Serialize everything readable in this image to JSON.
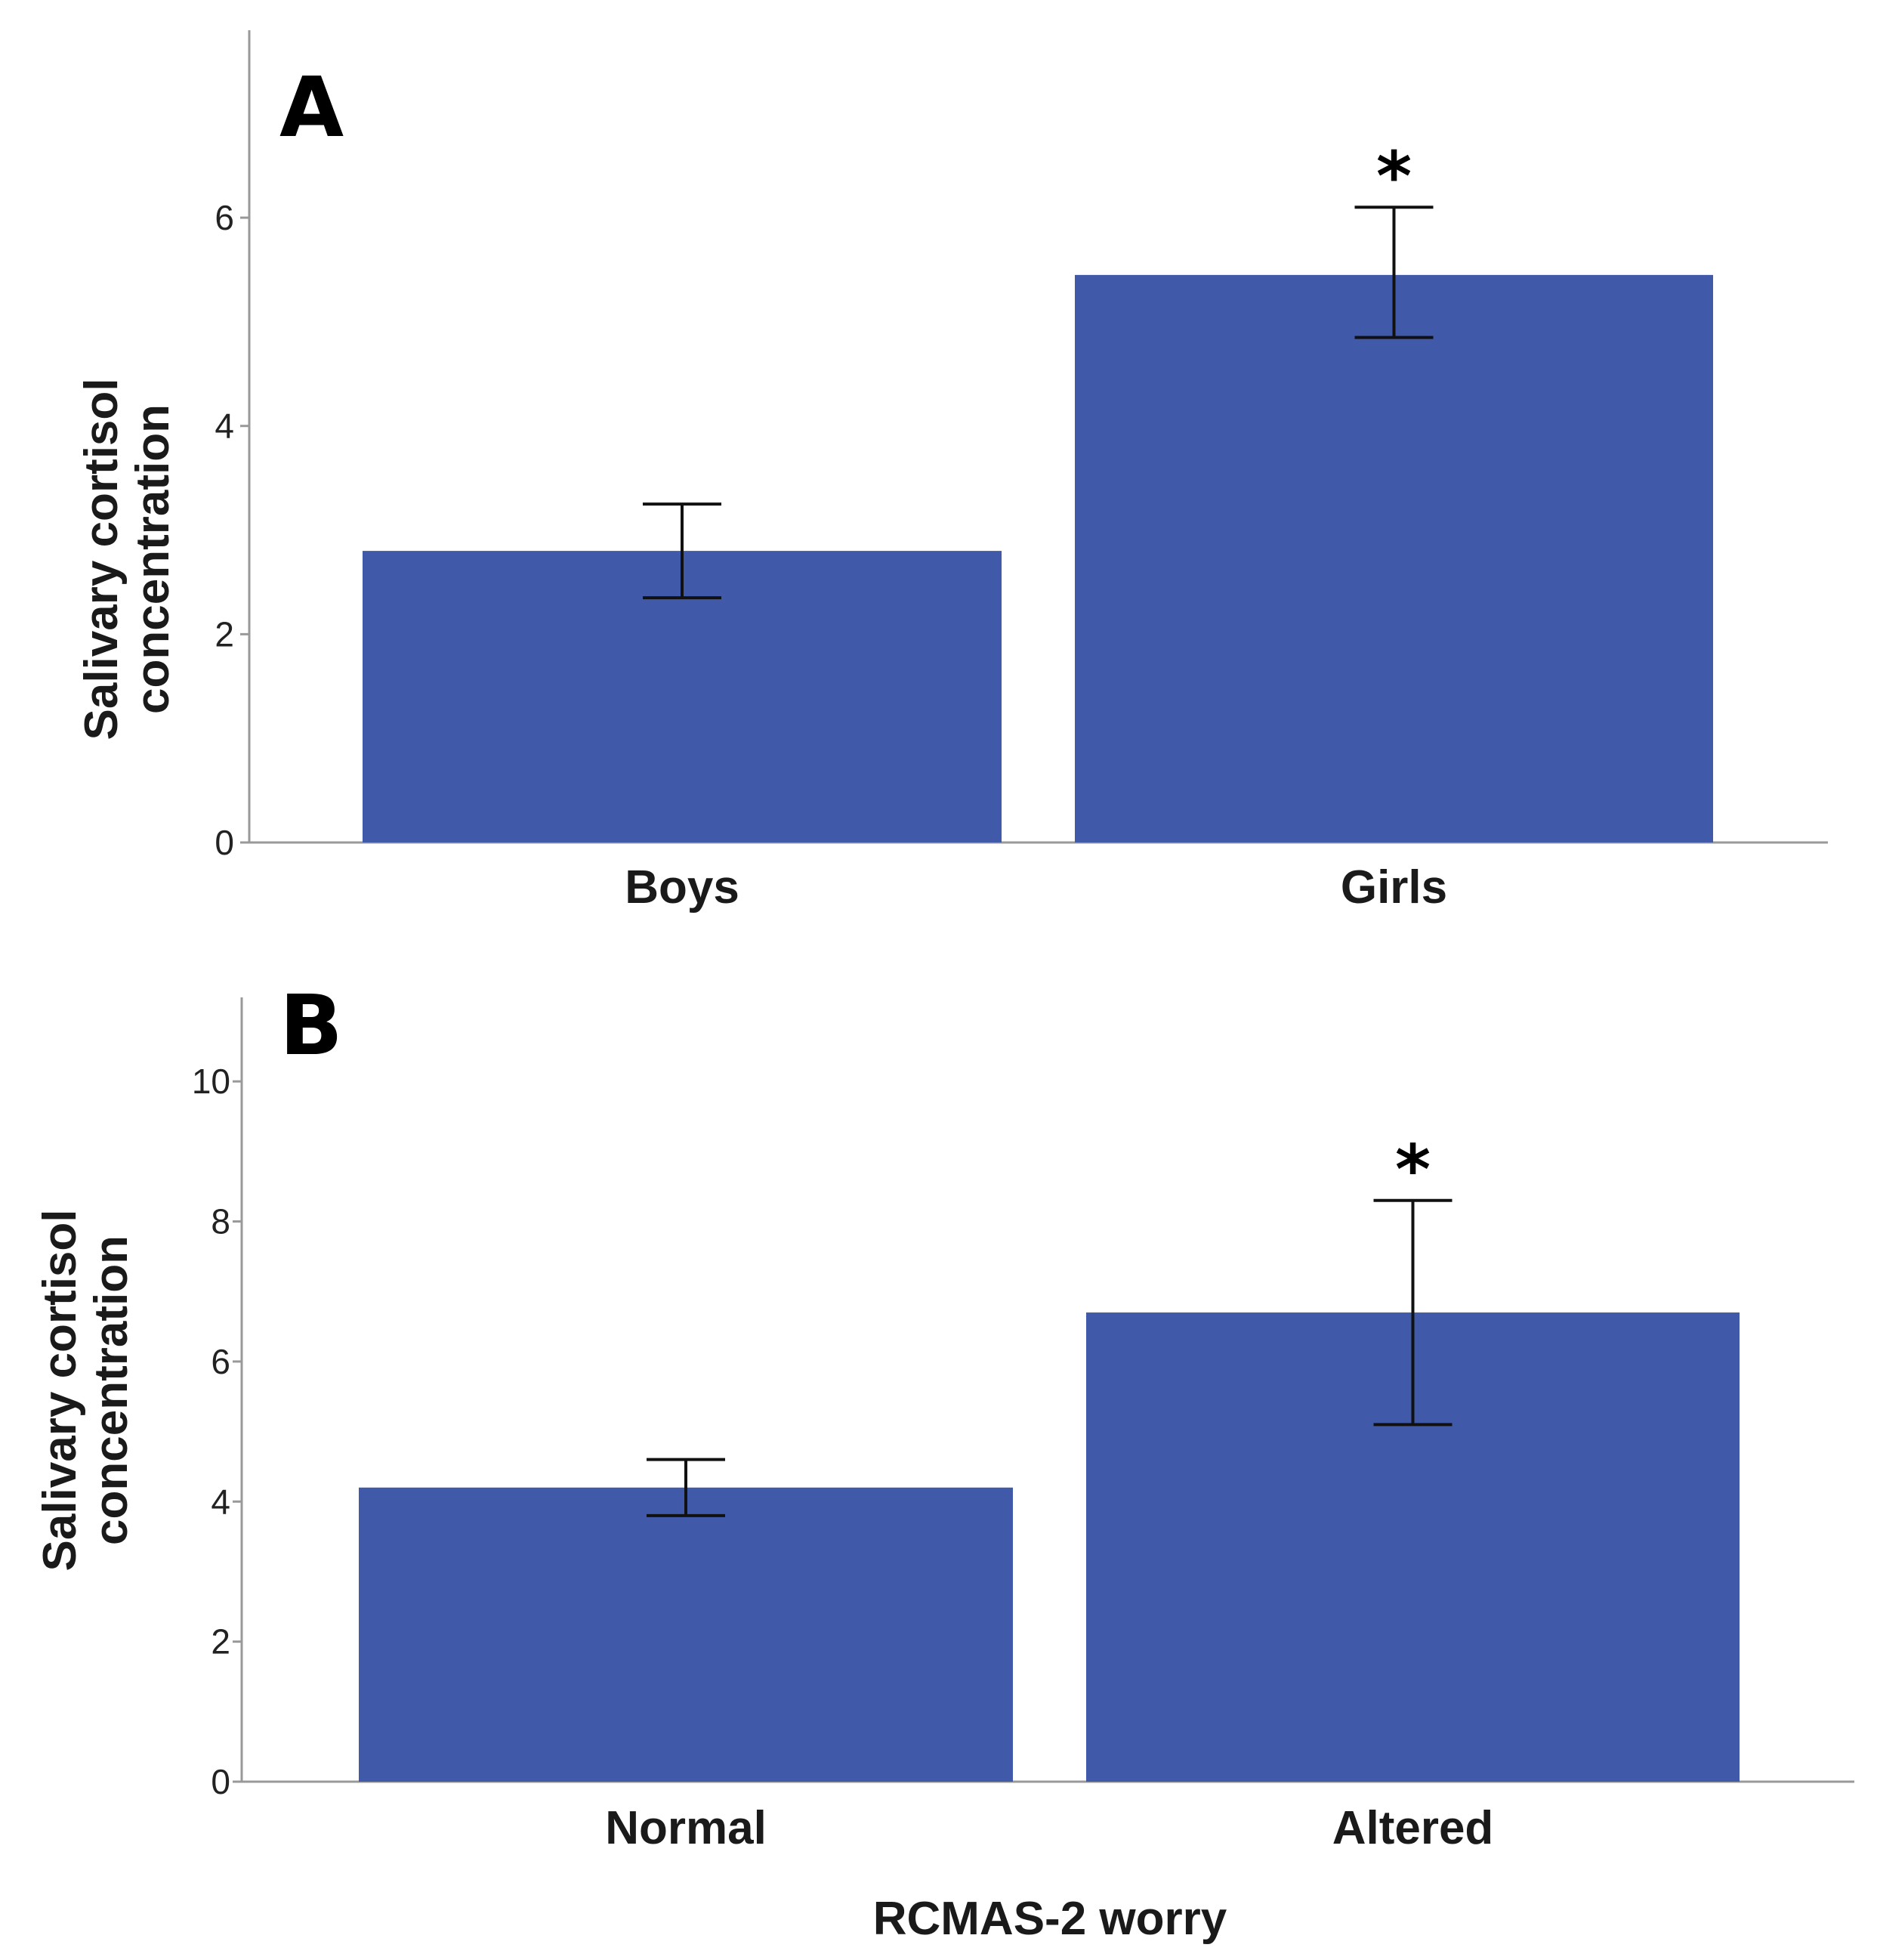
{
  "chart_data": [
    {
      "panel": "A",
      "type": "bar",
      "categories": [
        "Boys",
        "Girls"
      ],
      "values": [
        2.8,
        5.45
      ],
      "errors": [
        [
          2.35,
          3.25
        ],
        [
          4.85,
          6.1
        ]
      ],
      "significance": [
        "",
        "*"
      ],
      "ylabel_lines": [
        "Salivary cortisol",
        "concentration"
      ],
      "xlabel": "",
      "ylim": [
        0,
        7.8
      ],
      "yticks": [
        0,
        2,
        4,
        6
      ],
      "color": "#4059a8"
    },
    {
      "panel": "B",
      "type": "bar",
      "categories": [
        "Normal",
        "Altered"
      ],
      "values": [
        4.2,
        6.7
      ],
      "errors": [
        [
          3.8,
          4.6
        ],
        [
          5.1,
          8.3
        ]
      ],
      "significance": [
        "",
        "*"
      ],
      "ylabel_lines": [
        "Salivary cortisol",
        "concentration"
      ],
      "xlabel": "RCMAS-2 worry",
      "ylim": [
        0,
        11.2
      ],
      "yticks": [
        0,
        2,
        4,
        6,
        8,
        10
      ],
      "color": "#4059a8"
    }
  ]
}
